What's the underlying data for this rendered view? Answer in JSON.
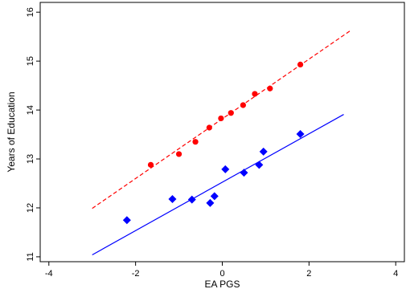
{
  "chart_data": {
    "type": "scatter",
    "title": "",
    "xlabel": "EA PGS",
    "ylabel": "Years of Education",
    "xlim": [
      -4.2,
      4.2
    ],
    "ylim": [
      10.9,
      16.2
    ],
    "xticks": [
      -4,
      -2,
      0,
      2,
      4
    ],
    "xtick_labels": [
      "-4",
      "-2",
      "0",
      "2",
      "4"
    ],
    "yticks": [
      11,
      12,
      13,
      14,
      15,
      16
    ],
    "ytick_labels": [
      "11",
      "12",
      "13",
      "14",
      "15",
      "16"
    ],
    "grid": false,
    "legend": "none",
    "series": [
      {
        "marker": "circle",
        "color": "#ff0000",
        "points": [
          {
            "x": -1.65,
            "y": 12.88
          },
          {
            "x": -1.0,
            "y": 13.1
          },
          {
            "x": -0.62,
            "y": 13.35
          },
          {
            "x": -0.3,
            "y": 13.64
          },
          {
            "x": -0.03,
            "y": 13.83
          },
          {
            "x": 0.2,
            "y": 13.94
          },
          {
            "x": 0.48,
            "y": 14.1
          },
          {
            "x": 0.75,
            "y": 14.33
          },
          {
            "x": 1.1,
            "y": 14.44
          },
          {
            "x": 1.8,
            "y": 14.93
          }
        ],
        "fit": {
          "style": "dashed",
          "x": [
            -3.0,
            2.95
          ],
          "y": [
            11.99,
            15.62
          ]
        }
      },
      {
        "marker": "diamond",
        "color": "#0000ff",
        "points": [
          {
            "x": -2.2,
            "y": 11.75
          },
          {
            "x": -1.15,
            "y": 12.18
          },
          {
            "x": -0.7,
            "y": 12.17
          },
          {
            "x": -0.28,
            "y": 12.1
          },
          {
            "x": -0.18,
            "y": 12.24
          },
          {
            "x": 0.07,
            "y": 12.79
          },
          {
            "x": 0.5,
            "y": 12.72
          },
          {
            "x": 0.85,
            "y": 12.88
          },
          {
            "x": 0.95,
            "y": 13.15
          },
          {
            "x": 1.8,
            "y": 13.51
          }
        ],
        "fit": {
          "style": "solid",
          "x": [
            -3.0,
            2.8
          ],
          "y": [
            11.04,
            13.91
          ]
        }
      }
    ]
  }
}
